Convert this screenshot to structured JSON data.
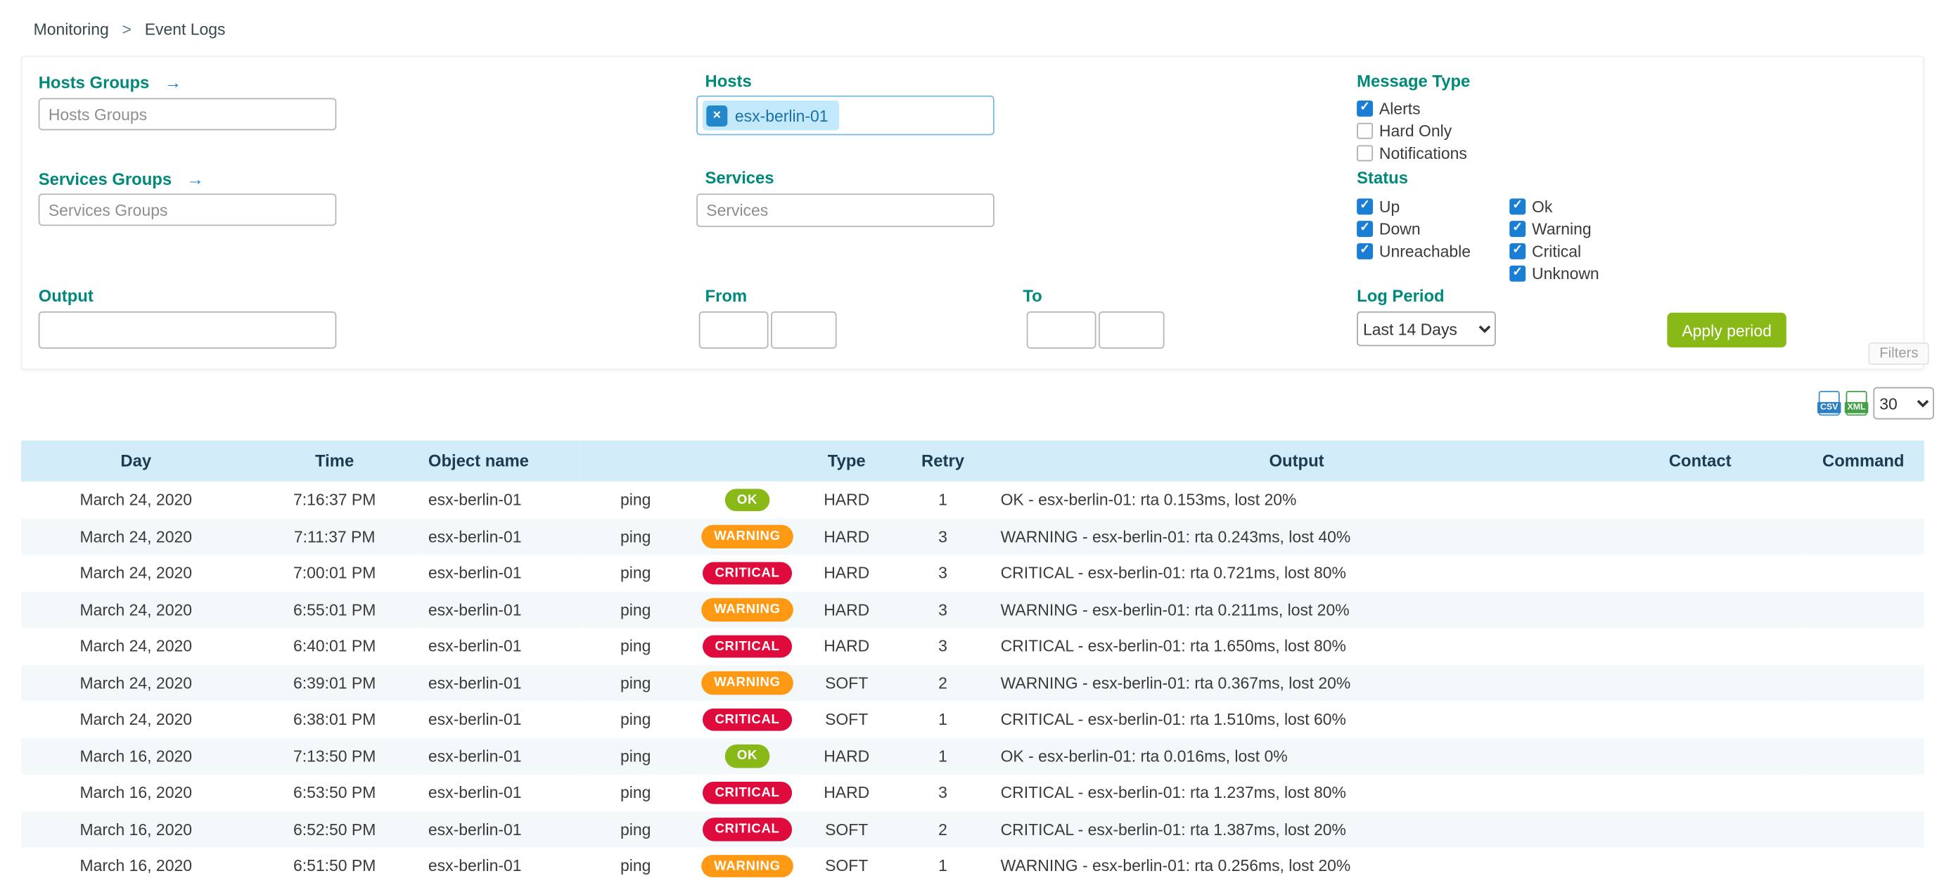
{
  "breadcrumb": {
    "section": "Monitoring",
    "separator": ">",
    "page": "Event Logs"
  },
  "filter_panel": {
    "hosts_groups_label": "Hosts Groups",
    "hosts_groups_placeholder": "Hosts Groups",
    "services_groups_label": "Services Groups",
    "services_groups_placeholder": "Services Groups",
    "output_label": "Output",
    "output_value": "",
    "hosts_label": "Hosts",
    "hosts_selected_chip": "esx-berlin-01",
    "chip_remove_glyph": "×",
    "link_arrow_glyph": "→",
    "services_label": "Services",
    "services_placeholder": "Services",
    "from_label": "From",
    "to_label": "To",
    "message_type_label": "Message Type",
    "message_type_options": [
      {
        "label": "Alerts",
        "checked": true
      },
      {
        "label": "Hard Only",
        "checked": false
      },
      {
        "label": "Notifications",
        "checked": false
      }
    ],
    "status_label": "Status",
    "status_options_col1": [
      {
        "label": "Up",
        "checked": true
      },
      {
        "label": "Down",
        "checked": true
      },
      {
        "label": "Unreachable",
        "checked": true
      }
    ],
    "status_options_col2": [
      {
        "label": "Ok",
        "checked": true
      },
      {
        "label": "Warning",
        "checked": true
      },
      {
        "label": "Critical",
        "checked": true
      },
      {
        "label": "Unknown",
        "checked": true
      }
    ],
    "log_period_label": "Log Period",
    "log_period_value": "Last 14 Days",
    "apply_button_label": "Apply period",
    "filters_toggle_label": "Filters"
  },
  "toolbar": {
    "csv_icon_label": "CSV",
    "xml_icon_label": "XML",
    "page_size_value": "30"
  },
  "table": {
    "headers": [
      "Day",
      "Time",
      "Object name",
      "",
      "",
      "Type",
      "Retry",
      "Output",
      "Contact",
      "Command"
    ],
    "rows": [
      {
        "day": "March 24, 2020",
        "time": "7:16:37 PM",
        "object": "esx-berlin-01",
        "service": "ping",
        "status": "OK",
        "type": "HARD",
        "retry": "1",
        "output": "OK - esx-berlin-01: rta 0.153ms, lost 20%",
        "contact": "",
        "command": ""
      },
      {
        "day": "March 24, 2020",
        "time": "7:11:37 PM",
        "object": "esx-berlin-01",
        "service": "ping",
        "status": "WARNING",
        "type": "HARD",
        "retry": "3",
        "output": "WARNING - esx-berlin-01: rta 0.243ms, lost 40%",
        "contact": "",
        "command": ""
      },
      {
        "day": "March 24, 2020",
        "time": "7:00:01 PM",
        "object": "esx-berlin-01",
        "service": "ping",
        "status": "CRITICAL",
        "type": "HARD",
        "retry": "3",
        "output": "CRITICAL - esx-berlin-01: rta 0.721ms, lost 80%",
        "contact": "",
        "command": ""
      },
      {
        "day": "March 24, 2020",
        "time": "6:55:01 PM",
        "object": "esx-berlin-01",
        "service": "ping",
        "status": "WARNING",
        "type": "HARD",
        "retry": "3",
        "output": "WARNING - esx-berlin-01: rta 0.211ms, lost 20%",
        "contact": "",
        "command": ""
      },
      {
        "day": "March 24, 2020",
        "time": "6:40:01 PM",
        "object": "esx-berlin-01",
        "service": "ping",
        "status": "CRITICAL",
        "type": "HARD",
        "retry": "3",
        "output": "CRITICAL - esx-berlin-01: rta 1.650ms, lost 80%",
        "contact": "",
        "command": ""
      },
      {
        "day": "March 24, 2020",
        "time": "6:39:01 PM",
        "object": "esx-berlin-01",
        "service": "ping",
        "status": "WARNING",
        "type": "SOFT",
        "retry": "2",
        "output": "WARNING - esx-berlin-01: rta 0.367ms, lost 20%",
        "contact": "",
        "command": ""
      },
      {
        "day": "March 24, 2020",
        "time": "6:38:01 PM",
        "object": "esx-berlin-01",
        "service": "ping",
        "status": "CRITICAL",
        "type": "SOFT",
        "retry": "1",
        "output": "CRITICAL - esx-berlin-01: rta 1.510ms, lost 60%",
        "contact": "",
        "command": ""
      },
      {
        "day": "March 16, 2020",
        "time": "7:13:50 PM",
        "object": "esx-berlin-01",
        "service": "ping",
        "status": "OK",
        "type": "HARD",
        "retry": "1",
        "output": "OK - esx-berlin-01: rta 0.016ms, lost 0%",
        "contact": "",
        "command": ""
      },
      {
        "day": "March 16, 2020",
        "time": "6:53:50 PM",
        "object": "esx-berlin-01",
        "service": "ping",
        "status": "CRITICAL",
        "type": "HARD",
        "retry": "3",
        "output": "CRITICAL - esx-berlin-01: rta 1.237ms, lost 80%",
        "contact": "",
        "command": ""
      },
      {
        "day": "March 16, 2020",
        "time": "6:52:50 PM",
        "object": "esx-berlin-01",
        "service": "ping",
        "status": "CRITICAL",
        "type": "SOFT",
        "retry": "2",
        "output": "CRITICAL - esx-berlin-01: rta 1.387ms, lost 20%",
        "contact": "",
        "command": ""
      },
      {
        "day": "March 16, 2020",
        "time": "6:51:50 PM",
        "object": "esx-berlin-01",
        "service": "ping",
        "status": "WARNING",
        "type": "SOFT",
        "retry": "1",
        "output": "WARNING - esx-berlin-01: rta 0.256ms, lost 20%",
        "contact": "",
        "command": ""
      }
    ]
  },
  "colors": {
    "ok": "#88b917",
    "warning": "#ff9913",
    "critical": "#e00b3d",
    "accent_blue": "#1a7fd4",
    "label_teal": "#00897b",
    "apply_green": "#88b917",
    "table_header_bg": "#d2ecf9"
  }
}
